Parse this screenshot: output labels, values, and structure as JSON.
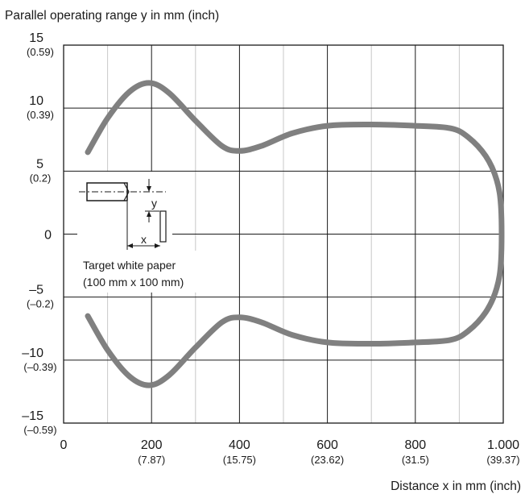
{
  "chart_data": {
    "type": "line",
    "ylabel": "Parallel operating range y in mm (inch)",
    "xlabel": "Distance x in mm (inch)",
    "xlim": [
      0,
      1000
    ],
    "ylim": [
      -15,
      15
    ],
    "grid": true,
    "x_ticks": [
      {
        "value": 0,
        "label": "0",
        "sub": ""
      },
      {
        "value": 200,
        "label": "200",
        "sub": "(7.87)"
      },
      {
        "value": 400,
        "label": "400",
        "sub": "(15.75)"
      },
      {
        "value": 600,
        "label": "600",
        "sub": "(23.62)"
      },
      {
        "value": 800,
        "label": "800",
        "sub": "(31.5)"
      },
      {
        "value": 1000,
        "label": "1.000",
        "sub": "(39.37)"
      }
    ],
    "y_ticks": [
      {
        "value": 15,
        "label": "15",
        "sub": "(0.59)"
      },
      {
        "value": 10,
        "label": "10",
        "sub": "(0.39)"
      },
      {
        "value": 5,
        "label": "5",
        "sub": "(0.2)"
      },
      {
        "value": 0,
        "label": "0",
        "sub": ""
      },
      {
        "value": -5,
        "label": "–5",
        "sub": "(–0.2)"
      },
      {
        "value": -10,
        "label": "–10",
        "sub": "(–0.39)"
      },
      {
        "value": -15,
        "label": "–15",
        "sub": "(–0.59)"
      }
    ],
    "series": [
      {
        "color": "#808080",
        "points": [
          [
            55,
            6.5
          ],
          [
            100,
            9.2
          ],
          [
            150,
            11.3
          ],
          [
            195,
            12.0
          ],
          [
            240,
            11.2
          ],
          [
            300,
            9.0
          ],
          [
            360,
            7.0
          ],
          [
            400,
            6.6
          ],
          [
            450,
            7.0
          ],
          [
            520,
            8.0
          ],
          [
            600,
            8.6
          ],
          [
            700,
            8.7
          ],
          [
            800,
            8.6
          ],
          [
            880,
            8.4
          ],
          [
            920,
            7.7
          ],
          [
            960,
            6.2
          ],
          [
            985,
            4.3
          ],
          [
            995,
            2.0
          ],
          [
            995,
            -2.0
          ],
          [
            985,
            -4.3
          ],
          [
            960,
            -6.2
          ],
          [
            920,
            -7.7
          ],
          [
            880,
            -8.4
          ],
          [
            800,
            -8.6
          ],
          [
            700,
            -8.7
          ],
          [
            600,
            -8.6
          ],
          [
            520,
            -8.0
          ],
          [
            450,
            -7.0
          ],
          [
            400,
            -6.6
          ],
          [
            360,
            -7.0
          ],
          [
            300,
            -9.0
          ],
          [
            240,
            -11.2
          ],
          [
            195,
            -12.0
          ],
          [
            150,
            -11.3
          ],
          [
            100,
            -9.2
          ],
          [
            55,
            -6.5
          ]
        ]
      }
    ],
    "annotations": {
      "x_label": "x",
      "y_label": "y",
      "target_line1": "Target white paper",
      "target_line2": "(100 mm x 100 mm)"
    }
  }
}
